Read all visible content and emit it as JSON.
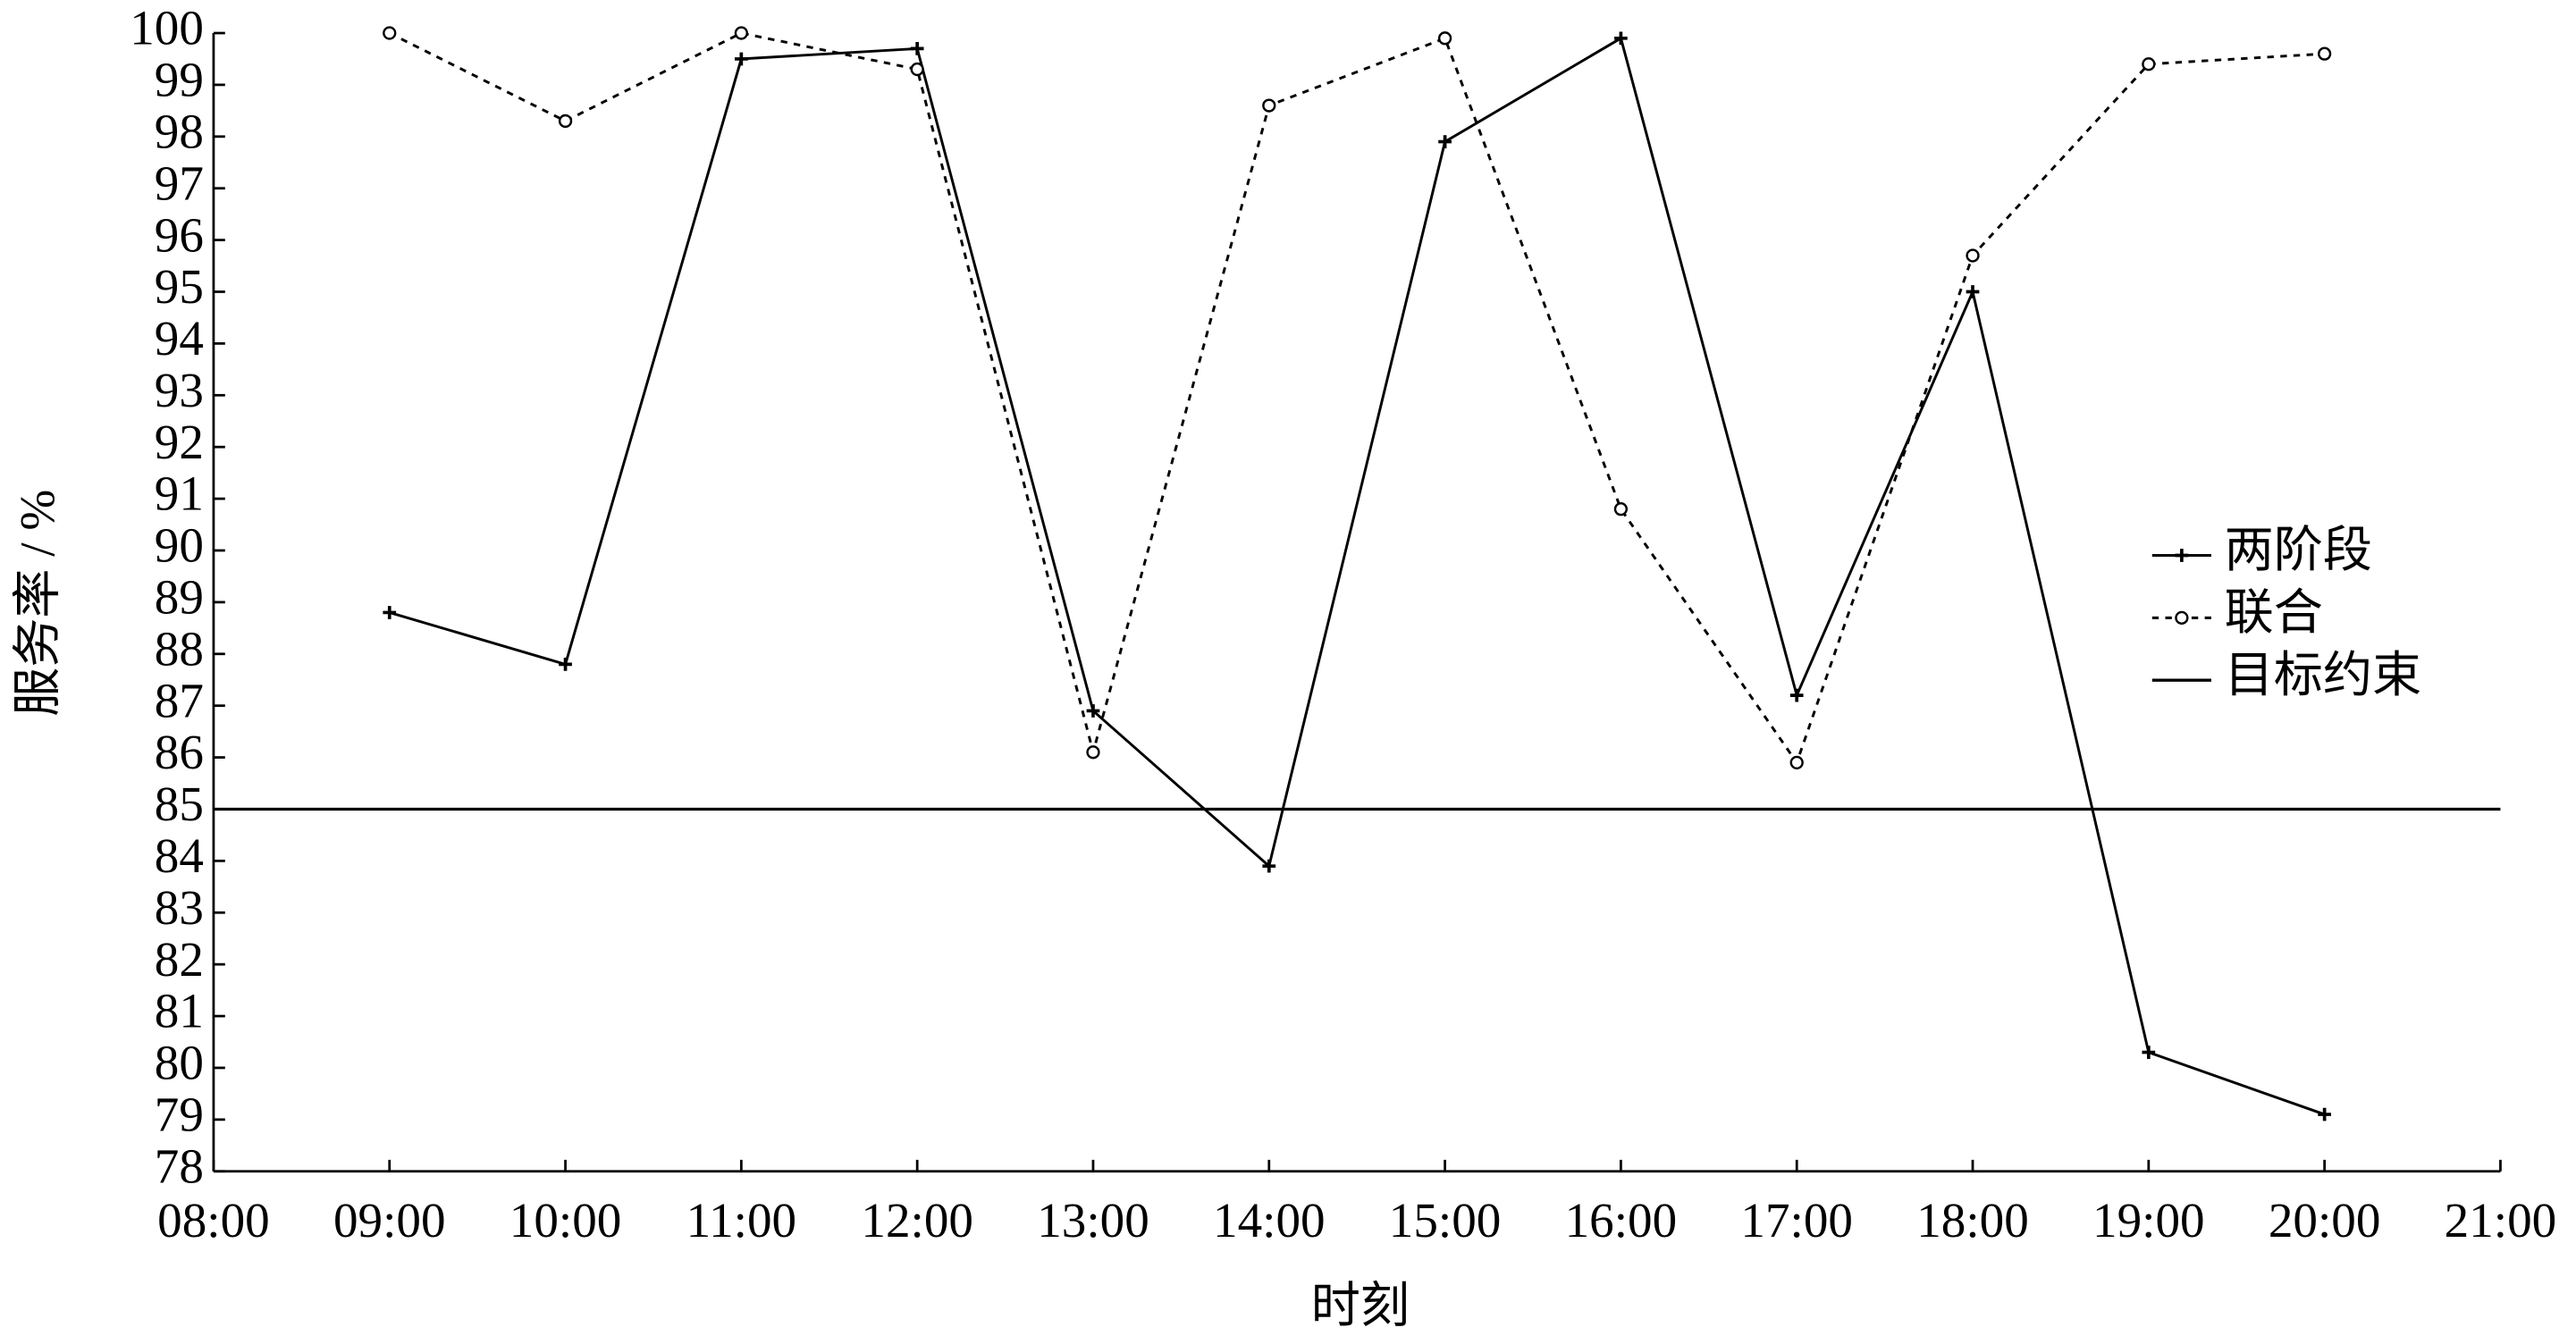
{
  "chart_data": {
    "type": "line",
    "xlabel": "时刻",
    "ylabel": "服务率 / %",
    "categories": [
      "08:00",
      "09:00",
      "10:00",
      "11:00",
      "12:00",
      "13:00",
      "14:00",
      "15:00",
      "16:00",
      "17:00",
      "18:00",
      "19:00",
      "20:00",
      "21:00"
    ],
    "series": [
      {
        "name": "两阶段",
        "color": "#000000",
        "dash": false,
        "marker": "plus",
        "values": [
          null,
          88.8,
          87.8,
          99.5,
          99.7,
          86.9,
          83.9,
          97.9,
          99.9,
          87.2,
          95.0,
          80.3,
          79.1,
          null
        ]
      },
      {
        "name": "联合",
        "color": "#000000",
        "dash": true,
        "marker": "circle",
        "values": [
          null,
          100.0,
          98.3,
          100.0,
          99.3,
          86.1,
          98.6,
          99.9,
          90.8,
          85.9,
          95.7,
          99.4,
          99.6,
          null
        ]
      }
    ],
    "target": {
      "name": "目标约束",
      "value": 85,
      "color": "#000000"
    },
    "ylim": [
      78,
      100
    ],
    "yticks": [
      78,
      79,
      80,
      81,
      82,
      83,
      84,
      85,
      86,
      87,
      88,
      89,
      90,
      91,
      92,
      93,
      94,
      95,
      96,
      97,
      98,
      99,
      100
    ],
    "legend": "right"
  }
}
